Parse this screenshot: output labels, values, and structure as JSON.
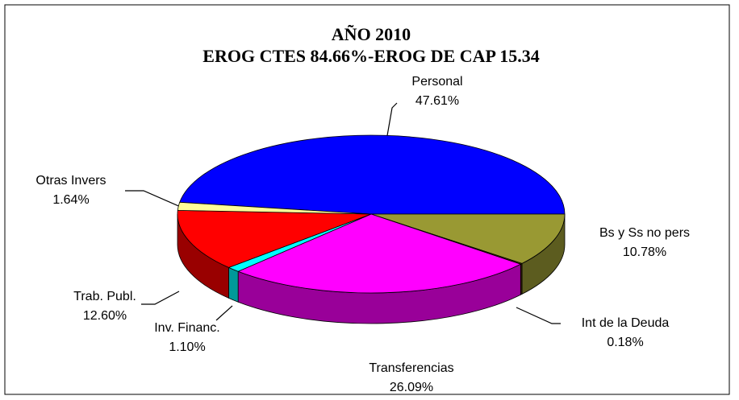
{
  "chart_data": {
    "type": "pie3d",
    "title": "AÑO 2010",
    "subtitle": "EROG CTES 84.66%-EROG DE CAP 15.34",
    "categories": [
      "Personal",
      "Bs y Ss no pers",
      "Int de la Deuda",
      "Transferencias",
      "Inv. Financ.",
      "Trab. Publ.",
      "Otras Invers"
    ],
    "values": [
      47.61,
      10.78,
      0.18,
      26.09,
      1.1,
      12.6,
      1.64
    ],
    "value_labels": [
      "47.61%",
      "10.78%",
      "0.18%",
      "26.09%",
      "1.10%",
      "12.60%",
      "1.64%"
    ],
    "colors": [
      "#0000ff",
      "#999933",
      "#663300",
      "#ff00ff",
      "#00ffff",
      "#ff0000",
      "#ffff99"
    ]
  }
}
